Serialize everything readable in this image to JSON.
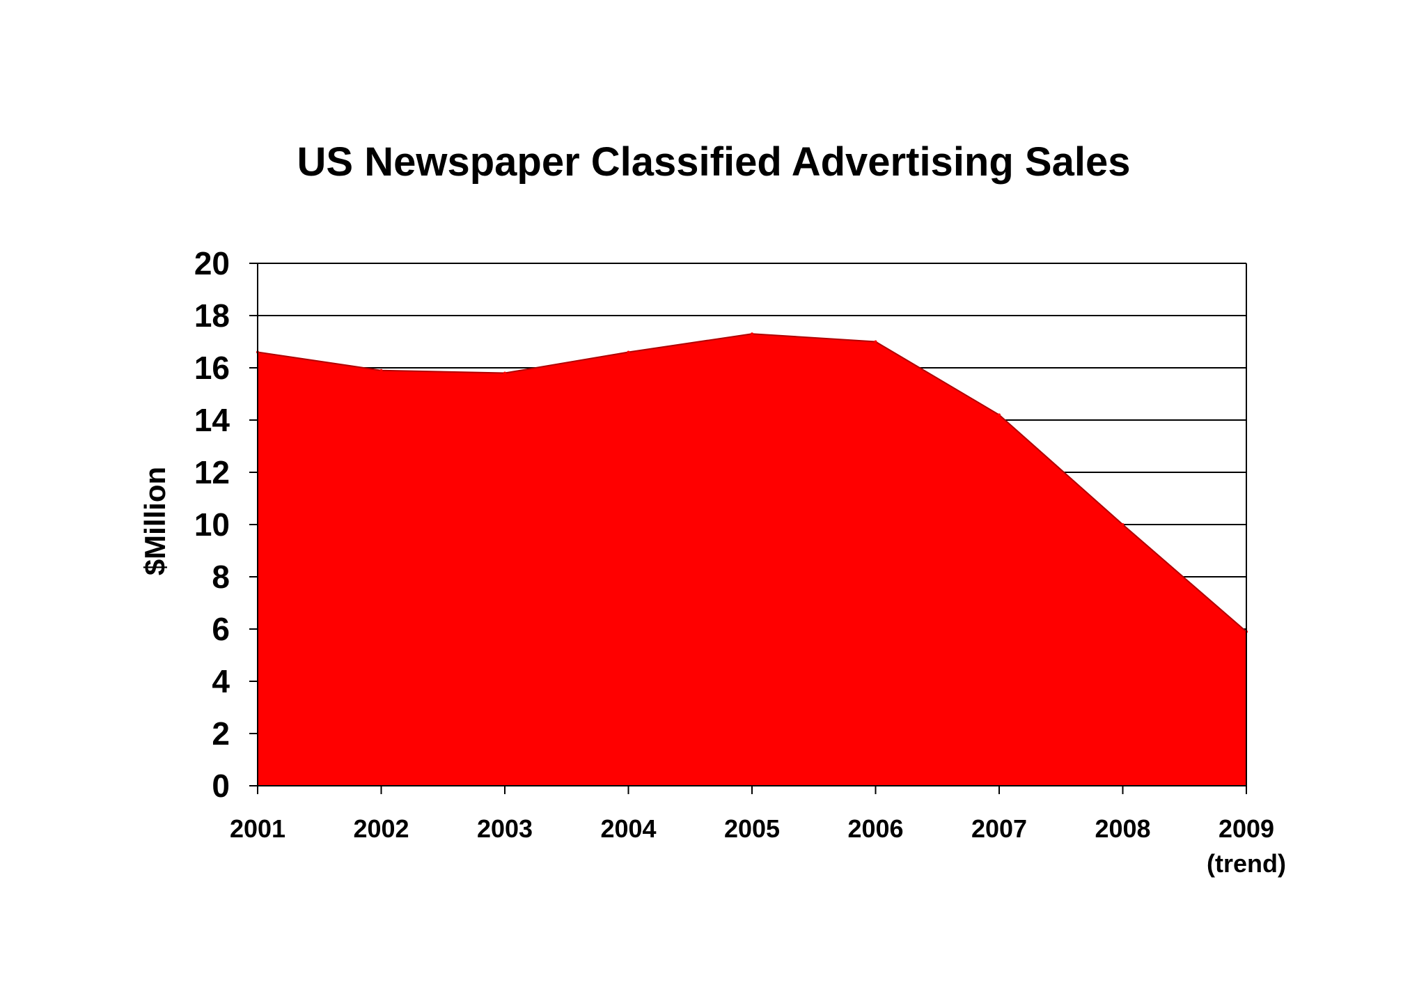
{
  "chart_data": {
    "type": "area",
    "title": "US Newspaper Classified Advertising Sales",
    "ylabel": "$Million",
    "xlabel": "",
    "ylim": [
      0,
      20
    ],
    "yticks": [
      "0",
      "2",
      "4",
      "6",
      "8",
      "10",
      "12",
      "14",
      "16",
      "18",
      "20"
    ],
    "categories": [
      "2001",
      "2002",
      "2003",
      "2004",
      "2005",
      "2006",
      "2007",
      "2008",
      "2009"
    ],
    "category_sublabels": [
      "",
      "",
      "",
      "",
      "",
      "",
      "",
      "",
      "(trend)"
    ],
    "values": [
      16.6,
      15.9,
      15.8,
      16.6,
      17.3,
      17.0,
      14.2,
      10.0,
      5.9
    ],
    "grid": "horizontal",
    "colors": {
      "area": "#ff0000",
      "axis": "#000000",
      "grid": "#000000",
      "background": "#ffffff"
    }
  }
}
